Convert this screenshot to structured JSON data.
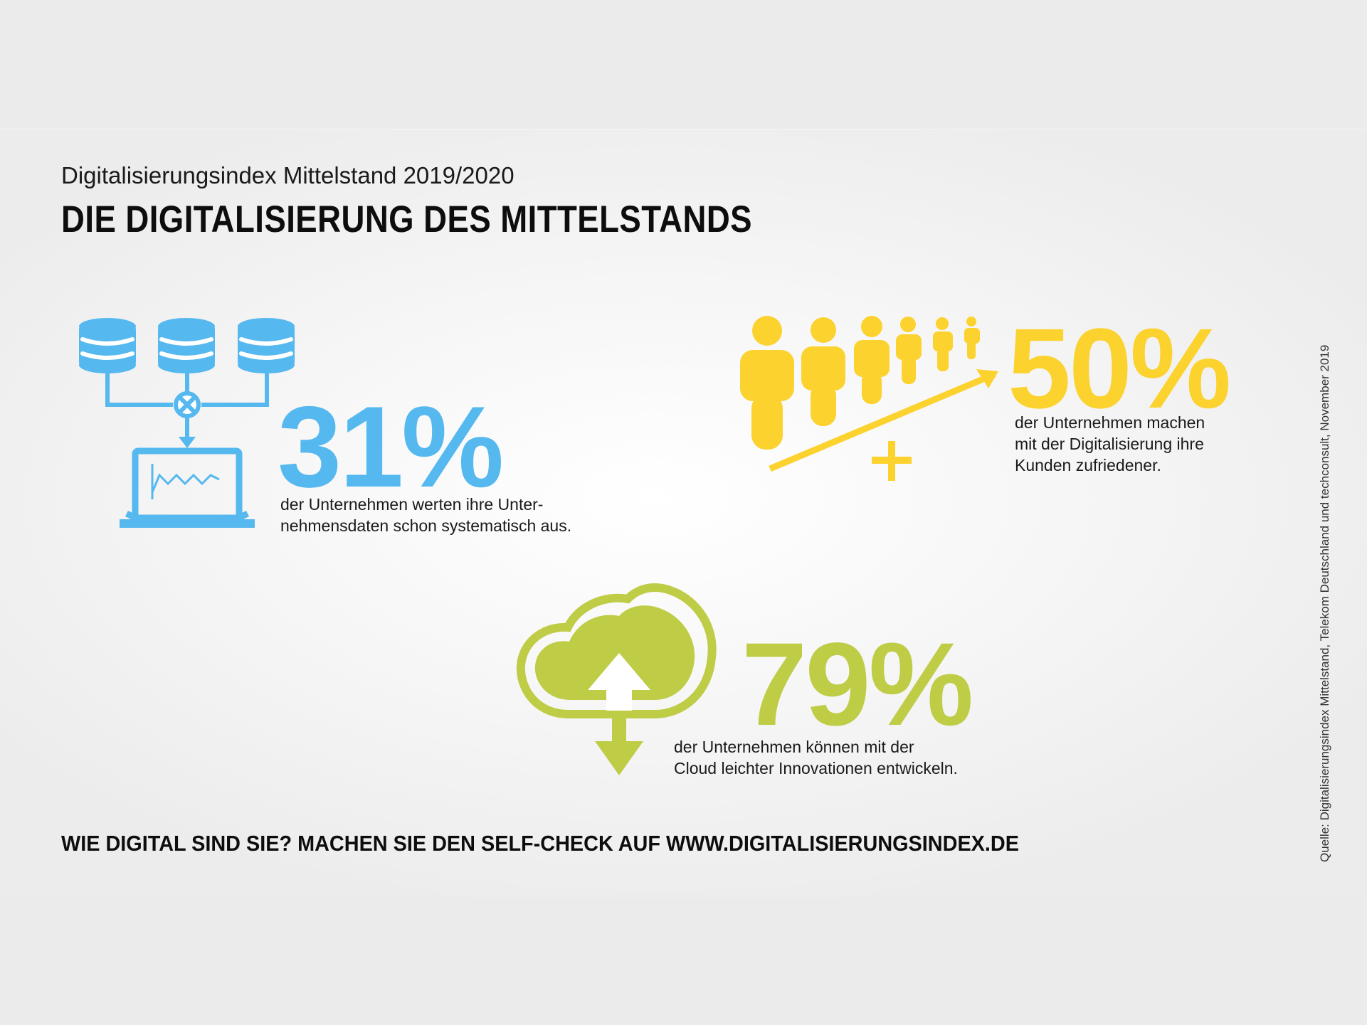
{
  "header": {
    "subtitle": "Digitalisierungsindex Mittelstand 2019/2020",
    "title": "DIE DIGITALISIERUNG DES MITTELSTANDS"
  },
  "stats": [
    {
      "value": "31%",
      "color": "#55b8ee",
      "icon": "database-laptop-icon",
      "description": [
        "der Unternehmen werten ihre Unter-",
        "nehmensdaten schon systematisch aus."
      ]
    },
    {
      "value": "50%",
      "color": "#fcd22e",
      "icon": "people-growth-icon",
      "description": [
        "der Unternehmen machen",
        "mit der Digitalisierung ihre",
        "Kunden zufriedener."
      ]
    },
    {
      "value": "79%",
      "color": "#bfcc46",
      "icon": "cloud-upload-icon",
      "description": [
        "der Unternehmen können mit der",
        "Cloud leichter Innovationen entwickeln."
      ]
    }
  ],
  "footer": {
    "cta": "WIE DIGITAL SIND SIE? MACHEN SIE DEN SELF-CHECK AUF WWW.DIGITALISIERUNGSINDEX.DE"
  },
  "source": "Quelle: Digitalisierungsindex Mittelstand, Telekom Deutschland und techconsult, November 2019"
}
